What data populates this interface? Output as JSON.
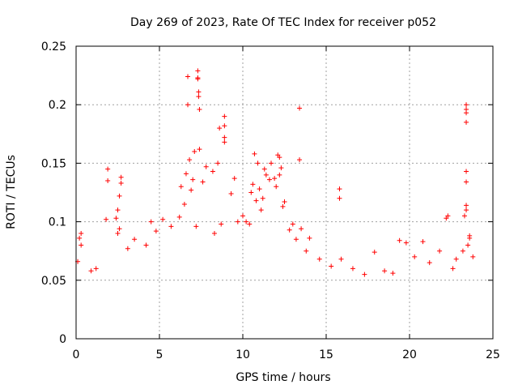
{
  "chart_data": {
    "type": "scatter",
    "title": "Day 269 of 2023, Rate Of TEC Index for receiver p052",
    "xlabel": "GPS time / hours",
    "ylabel": "ROTI / TECUs",
    "xlim": [
      0,
      25
    ],
    "ylim": [
      0,
      0.25
    ],
    "xticks": [
      "0",
      "5",
      "10",
      "15",
      "20",
      "25"
    ],
    "yticks": [
      "0",
      "0.05",
      "0.1",
      "0.15",
      "0.2",
      "0.25"
    ],
    "grid": true,
    "legend": "none",
    "marker": "plus",
    "series": [
      {
        "color": "#ff0000",
        "points": [
          [
            6.7,
            0.224
          ],
          [
            6.7,
            0.2
          ],
          [
            7.3,
            0.229
          ],
          [
            7.3,
            0.223
          ],
          [
            7.3,
            0.222
          ],
          [
            7.35,
            0.211
          ],
          [
            7.35,
            0.207
          ],
          [
            7.4,
            0.196
          ],
          [
            7.4,
            0.162
          ],
          [
            7.1,
            0.16
          ],
          [
            8.6,
            0.18
          ],
          [
            8.9,
            0.19
          ],
          [
            8.9,
            0.182
          ],
          [
            8.9,
            0.172
          ],
          [
            8.9,
            0.168
          ],
          [
            13.4,
            0.197
          ],
          [
            13.4,
            0.153
          ],
          [
            23.4,
            0.2
          ],
          [
            23.4,
            0.196
          ],
          [
            23.4,
            0.193
          ],
          [
            23.4,
            0.185
          ],
          [
            23.4,
            0.143
          ],
          [
            23.4,
            0.134
          ],
          [
            23.4,
            0.114
          ],
          [
            23.4,
            0.11
          ],
          [
            23.3,
            0.105
          ],
          [
            23.6,
            0.088
          ],
          [
            23.6,
            0.086
          ],
          [
            23.5,
            0.08
          ],
          [
            23.2,
            0.075
          ],
          [
            10.7,
            0.158
          ],
          [
            10.9,
            0.15
          ],
          [
            11.3,
            0.145
          ],
          [
            11.7,
            0.15
          ],
          [
            12.1,
            0.157
          ],
          [
            12.2,
            0.155
          ],
          [
            12.3,
            0.146
          ],
          [
            12.2,
            0.14
          ],
          [
            11.4,
            0.14
          ],
          [
            11.6,
            0.136
          ],
          [
            11.9,
            0.137
          ],
          [
            12.0,
            0.13
          ],
          [
            10.6,
            0.132
          ],
          [
            11.0,
            0.128
          ],
          [
            10.5,
            0.125
          ],
          [
            11.2,
            0.12
          ],
          [
            10.8,
            0.118
          ],
          [
            12.5,
            0.117
          ],
          [
            12.4,
            0.113
          ],
          [
            9.5,
            0.137
          ],
          [
            9.3,
            0.124
          ],
          [
            8.5,
            0.15
          ],
          [
            8.2,
            0.143
          ],
          [
            7.8,
            0.147
          ],
          [
            7.6,
            0.134
          ],
          [
            6.8,
            0.153
          ],
          [
            6.6,
            0.141
          ],
          [
            6.3,
            0.13
          ],
          [
            6.5,
            0.115
          ],
          [
            6.2,
            0.104
          ],
          [
            6.9,
            0.127
          ],
          [
            7.0,
            0.136
          ],
          [
            5.2,
            0.102
          ],
          [
            4.5,
            0.1
          ],
          [
            2.7,
            0.138
          ],
          [
            2.7,
            0.133
          ],
          [
            2.6,
            0.122
          ],
          [
            2.5,
            0.11
          ],
          [
            2.4,
            0.103
          ],
          [
            2.6,
            0.094
          ],
          [
            2.5,
            0.09
          ],
          [
            1.9,
            0.145
          ],
          [
            1.9,
            0.135
          ],
          [
            1.8,
            0.102
          ],
          [
            0.3,
            0.09
          ],
          [
            0.2,
            0.086
          ],
          [
            0.3,
            0.08
          ],
          [
            0.1,
            0.066
          ],
          [
            13.5,
            0.094
          ],
          [
            13.2,
            0.085
          ],
          [
            14.0,
            0.086
          ],
          [
            13.8,
            0.075
          ],
          [
            15.8,
            0.128
          ],
          [
            15.8,
            0.12
          ],
          [
            15.9,
            0.068
          ],
          [
            17.9,
            0.074
          ],
          [
            19.4,
            0.084
          ],
          [
            19.8,
            0.082
          ],
          [
            20.8,
            0.083
          ],
          [
            22.3,
            0.105
          ],
          [
            22.2,
            0.103
          ],
          [
            21.8,
            0.075
          ],
          [
            22.6,
            0.06
          ],
          [
            10.0,
            0.105
          ],
          [
            10.2,
            0.1
          ],
          [
            10.4,
            0.098
          ],
          [
            11.1,
            0.11
          ],
          [
            12.8,
            0.093
          ],
          [
            13.0,
            0.098
          ],
          [
            9.7,
            0.1
          ],
          [
            8.7,
            0.098
          ],
          [
            8.3,
            0.09
          ],
          [
            7.2,
            0.096
          ],
          [
            5.7,
            0.096
          ],
          [
            4.8,
            0.092
          ],
          [
            3.5,
            0.085
          ],
          [
            4.2,
            0.08
          ],
          [
            3.1,
            0.077
          ],
          [
            1.2,
            0.06
          ],
          [
            0.9,
            0.058
          ],
          [
            16.6,
            0.06
          ],
          [
            17.3,
            0.055
          ],
          [
            18.5,
            0.058
          ],
          [
            19.0,
            0.056
          ],
          [
            20.3,
            0.07
          ],
          [
            21.2,
            0.065
          ],
          [
            22.8,
            0.068
          ],
          [
            23.8,
            0.07
          ],
          [
            14.6,
            0.068
          ],
          [
            15.3,
            0.062
          ]
        ]
      }
    ]
  }
}
